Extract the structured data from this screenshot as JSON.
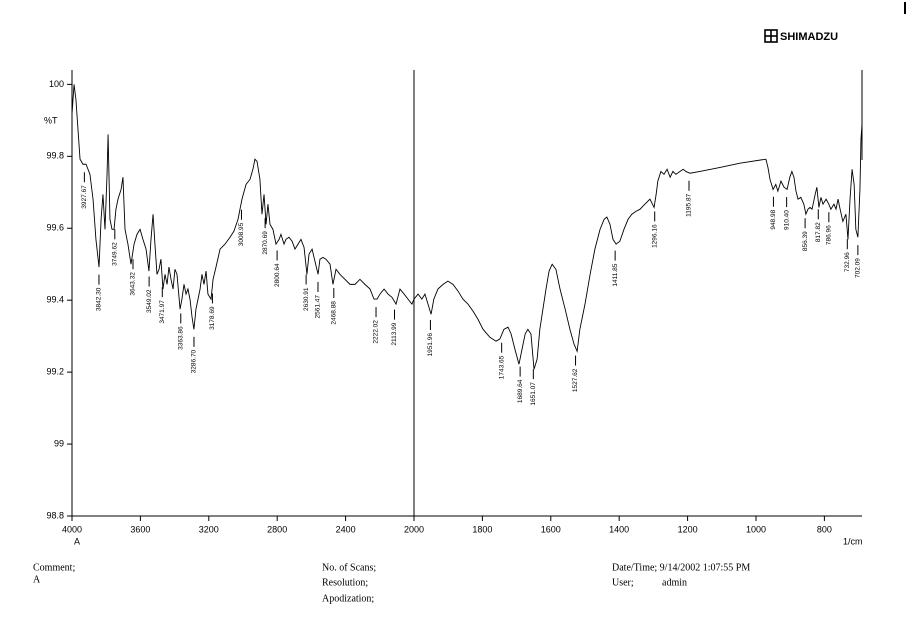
{
  "header": {
    "logo": "SHIMADZU"
  },
  "chart_data": {
    "type": "line",
    "color": "#000000",
    "y_label": "%T",
    "x_label": "1/cm",
    "x_note": "A",
    "xlim": [
      4000,
      690
    ],
    "x_break": 2000,
    "x_break_factor": 2,
    "xticks": [
      4000,
      3600,
      3200,
      2800,
      2400,
      2000,
      1800,
      1600,
      1400,
      1200,
      1000,
      800
    ],
    "ylim": [
      98.8,
      100.04
    ],
    "yticks": [
      98.8,
      99,
      99.2,
      99.4,
      99.6,
      99.8,
      100
    ],
    "x": [
      4000,
      3988,
      3977,
      3965,
      3953,
      3936,
      3918,
      3895,
      3877,
      3860,
      3842,
      3830,
      3819,
      3807,
      3795,
      3789,
      3778,
      3766,
      3754,
      3743,
      3731,
      3713,
      3702,
      3690,
      3673,
      3655,
      3637,
      3620,
      3602,
      3585,
      3567,
      3550,
      3538,
      3526,
      3515,
      3503,
      3491,
      3480,
      3468,
      3456,
      3444,
      3433,
      3421,
      3409,
      3398,
      3386,
      3368,
      3357,
      3345,
      3333,
      3322,
      3310,
      3298,
      3287,
      3275,
      3263,
      3251,
      3240,
      3228,
      3216,
      3205,
      3187,
      3175,
      3158,
      3134,
      3105,
      3076,
      3053,
      3029,
      3006,
      2982,
      2959,
      2942,
      2930,
      2918,
      2901,
      2889,
      2877,
      2865,
      2854,
      2842,
      2825,
      2807,
      2789,
      2778,
      2760,
      2749,
      2731,
      2713,
      2696,
      2678,
      2661,
      2643,
      2626,
      2614,
      2596,
      2579,
      2561,
      2550,
      2532,
      2515,
      2491,
      2474,
      2456,
      2433,
      2404,
      2374,
      2345,
      2316,
      2287,
      2257,
      2234,
      2216,
      2199,
      2175,
      2152,
      2129,
      2105,
      2082,
      2058,
      2035,
      2012,
      2000,
      1988,
      1977,
      1968,
      1959,
      1950,
      1942,
      1930,
      1915,
      1901,
      1886,
      1871,
      1857,
      1842,
      1827,
      1813,
      1798,
      1778,
      1760,
      1749,
      1737,
      1725,
      1716,
      1705,
      1693,
      1684,
      1675,
      1667,
      1658,
      1649,
      1640,
      1632,
      1623,
      1614,
      1605,
      1596,
      1585,
      1573,
      1558,
      1544,
      1532,
      1523,
      1515,
      1500,
      1485,
      1471,
      1456,
      1444,
      1436,
      1427,
      1418,
      1409,
      1398,
      1386,
      1374,
      1363,
      1351,
      1339,
      1325,
      1310,
      1298,
      1292,
      1287,
      1278,
      1269,
      1260,
      1251,
      1243,
      1234,
      1222,
      1213,
      1205,
      1193,
      1164,
      1105,
      1047,
      971,
      965,
      959,
      950,
      942,
      936,
      927,
      918,
      909,
      901,
      895,
      889,
      883,
      877,
      869,
      860,
      854,
      848,
      842,
      836,
      827,
      822,
      816,
      810,
      804,
      795,
      787,
      781,
      772,
      766,
      760,
      754,
      746,
      737,
      731,
      725,
      719,
      713,
      708,
      702,
      696,
      693,
      690
    ],
    "values": [
      99.917,
      100.0,
      99.958,
      99.875,
      99.792,
      99.778,
      99.778,
      99.75,
      99.681,
      99.569,
      99.492,
      99.625,
      99.694,
      99.597,
      99.75,
      99.861,
      99.625,
      99.597,
      99.597,
      99.653,
      99.681,
      99.708,
      99.742,
      99.597,
      99.556,
      99.5,
      99.556,
      99.583,
      99.597,
      99.569,
      99.542,
      99.481,
      99.569,
      99.639,
      99.556,
      99.472,
      99.486,
      99.514,
      99.431,
      99.472,
      99.444,
      99.492,
      99.458,
      99.431,
      99.486,
      99.472,
      99.375,
      99.403,
      99.444,
      99.417,
      99.431,
      99.403,
      99.353,
      99.319,
      99.375,
      99.403,
      99.431,
      99.472,
      99.444,
      99.481,
      99.417,
      99.403,
      99.458,
      99.492,
      99.542,
      99.556,
      99.575,
      99.592,
      99.625,
      99.681,
      99.722,
      99.736,
      99.764,
      99.792,
      99.786,
      99.736,
      99.639,
      99.694,
      99.611,
      99.667,
      99.611,
      99.597,
      99.556,
      99.569,
      99.583,
      99.556,
      99.569,
      99.575,
      99.564,
      99.542,
      99.556,
      99.569,
      99.547,
      99.472,
      99.528,
      99.542,
      99.508,
      99.472,
      99.514,
      99.519,
      99.514,
      99.5,
      99.444,
      99.486,
      99.472,
      99.458,
      99.444,
      99.444,
      99.458,
      99.444,
      99.431,
      99.403,
      99.403,
      99.417,
      99.431,
      99.417,
      99.408,
      99.389,
      99.431,
      99.417,
      99.403,
      99.389,
      99.403,
      99.417,
      99.403,
      99.417,
      99.389,
      99.361,
      99.403,
      99.431,
      99.444,
      99.453,
      99.444,
      99.425,
      99.403,
      99.389,
      99.369,
      99.347,
      99.319,
      99.297,
      99.286,
      99.292,
      99.319,
      99.325,
      99.306,
      99.264,
      99.222,
      99.264,
      99.306,
      99.319,
      99.306,
      99.208,
      99.236,
      99.319,
      99.375,
      99.431,
      99.481,
      99.5,
      99.486,
      99.431,
      99.375,
      99.319,
      99.278,
      99.258,
      99.319,
      99.389,
      99.472,
      99.542,
      99.597,
      99.625,
      99.631,
      99.611,
      99.569,
      99.556,
      99.564,
      99.597,
      99.625,
      99.639,
      99.647,
      99.653,
      99.667,
      99.681,
      99.658,
      99.694,
      99.731,
      99.758,
      99.75,
      99.764,
      99.742,
      99.758,
      99.75,
      99.758,
      99.764,
      99.758,
      99.753,
      99.758,
      99.769,
      99.781,
      99.792,
      99.769,
      99.736,
      99.708,
      99.722,
      99.703,
      99.731,
      99.714,
      99.708,
      99.742,
      99.758,
      99.742,
      99.703,
      99.681,
      99.686,
      99.667,
      99.639,
      99.653,
      99.658,
      99.653,
      99.694,
      99.714,
      99.658,
      99.686,
      99.667,
      99.681,
      99.667,
      99.653,
      99.667,
      99.653,
      99.681,
      99.653,
      99.619,
      99.639,
      99.569,
      99.681,
      99.764,
      99.722,
      99.597,
      99.575,
      99.708,
      99.847,
      99.889
    ],
    "peaks": [
      {
        "value": 3927.67,
        "label": "3927.67"
      },
      {
        "value": 3842.3,
        "label": "3842.30"
      },
      {
        "value": 3749.62,
        "label": "3749.62"
      },
      {
        "value": 3643.32,
        "label": "3643.32"
      },
      {
        "value": 3549.02,
        "label": "3549.02"
      },
      {
        "value": 3471.97,
        "label": "3471.97"
      },
      {
        "value": 3363.86,
        "label": "3363.86"
      },
      {
        "value": 3286.7,
        "label": "3286.70"
      },
      {
        "value": 3178.69,
        "label": "3178.69"
      },
      {
        "value": 3008.95,
        "label": "3008.95"
      },
      {
        "value": 2870.69,
        "label": "2870.69"
      },
      {
        "value": 2800.64,
        "label": "2800.64"
      },
      {
        "value": 2630.91,
        "label": "2630.91"
      },
      {
        "value": 2561.47,
        "label": "2561.47"
      },
      {
        "value": 2468.88,
        "label": "2468.88"
      },
      {
        "value": 2222.02,
        "label": "2222.02"
      },
      {
        "value": 2113.99,
        "label": "2113.99"
      },
      {
        "value": 1951.96,
        "label": "1951.96"
      },
      {
        "value": 1743.65,
        "label": "1743.65"
      },
      {
        "value": 1689.64,
        "label": "1689.64"
      },
      {
        "value": 1651.07,
        "label": "1651.07"
      },
      {
        "value": 1527.62,
        "label": "1527.62"
      },
      {
        "value": 1411.85,
        "label": "1411.85"
      },
      {
        "value": 1296.16,
        "label": "1296.16"
      },
      {
        "value": 1195.87,
        "label": "1195.87"
      },
      {
        "value": 948.98,
        "label": "948.98"
      },
      {
        "value": 910.4,
        "label": "910.40"
      },
      {
        "value": 856.39,
        "label": "856.39"
      },
      {
        "value": 817.82,
        "label": "817.82"
      },
      {
        "value": 786.96,
        "label": "786.96"
      },
      {
        "value": 732.96,
        "label": "732.96"
      },
      {
        "value": 702.09,
        "label": "702.09"
      }
    ]
  },
  "footer": {
    "comment_label": "Comment;",
    "comment": "A",
    "scans_label": "No. of Scans;",
    "resolution_label": "Resolution;",
    "apodization_label": "Apodization;",
    "datetime": "Date/Time; 9/14/2002 1:07:55 PM",
    "user_label": "User;",
    "user": "admin"
  }
}
